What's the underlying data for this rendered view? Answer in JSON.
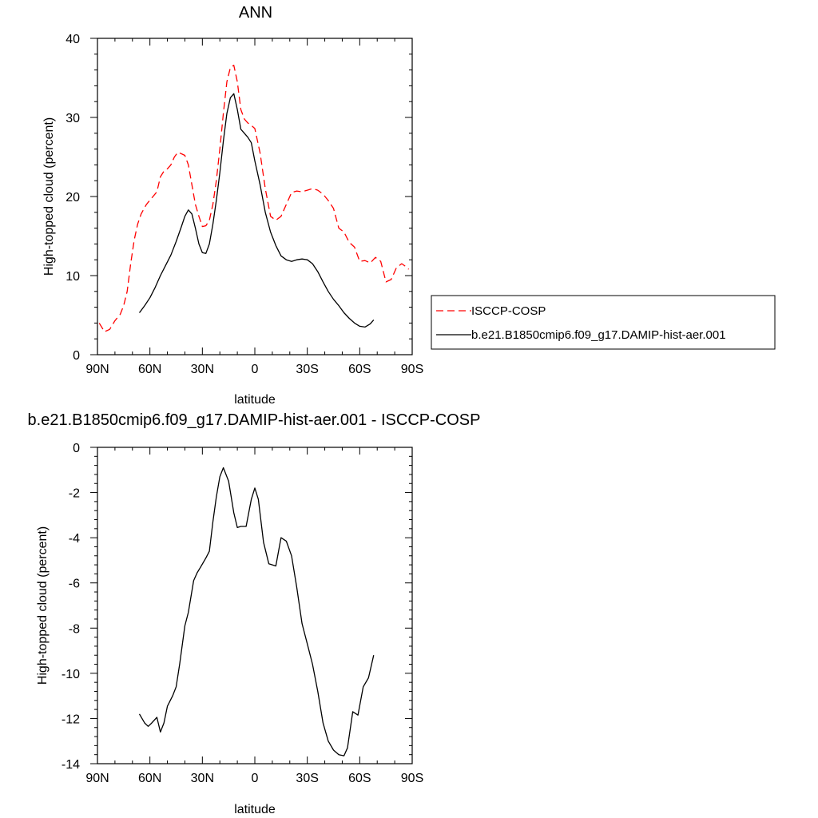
{
  "chart_data": [
    {
      "type": "line",
      "title": "ANN",
      "xlabel": "latitude",
      "ylabel": "High-topped cloud (percent)",
      "xlim": [
        90,
        -90
      ],
      "ylim": [
        0,
        40
      ],
      "xticks": [
        90,
        60,
        30,
        0,
        -30,
        -60,
        -90
      ],
      "xtick_labels": [
        "90N",
        "60N",
        "30N",
        "0",
        "30S",
        "60S",
        "90S"
      ],
      "yticks": [
        0,
        10,
        20,
        30,
        40
      ],
      "ytick_labels": [
        "0",
        "10",
        "20",
        "30",
        "40"
      ],
      "grid": false,
      "legend_position": "right",
      "series": [
        {
          "name": "ISCCP-COSP",
          "color": "#ff0000",
          "dash": "dashed",
          "x": [
            89,
            86,
            83,
            80,
            77,
            75,
            73,
            71,
            69,
            67,
            65,
            62,
            59,
            56,
            54,
            52,
            50,
            48,
            46,
            44,
            42,
            40,
            38,
            36,
            34,
            32,
            30,
            28,
            26,
            24,
            22,
            20,
            18,
            16,
            14,
            12,
            10,
            8,
            6,
            4,
            2,
            0,
            -3,
            -6,
            -9,
            -12,
            -15,
            -18,
            -21,
            -24,
            -27,
            -30,
            -33,
            -36,
            -39,
            -42,
            -45,
            -48,
            -51,
            -54,
            -57,
            -60,
            -63,
            -66,
            -69,
            -72,
            -75,
            -78,
            -81,
            -84,
            -86,
            -88
          ],
          "values": [
            4.0,
            2.9,
            3.2,
            4.3,
            5.1,
            6.2,
            8.0,
            11.5,
            14.5,
            16.5,
            17.8,
            19.0,
            19.8,
            20.6,
            22.5,
            23.2,
            23.5,
            24.0,
            25.0,
            25.6,
            25.4,
            25.2,
            24.0,
            21.5,
            19.0,
            17.5,
            16.2,
            16.3,
            17.0,
            19.0,
            22.0,
            26.0,
            30.5,
            34.5,
            36.3,
            36.6,
            34.5,
            31.0,
            29.8,
            29.3,
            29.0,
            28.6,
            25.5,
            21.0,
            17.5,
            17.0,
            17.5,
            19.0,
            20.5,
            20.7,
            20.6,
            20.8,
            21.0,
            20.8,
            20.3,
            19.5,
            18.5,
            16.0,
            15.5,
            14.2,
            13.6,
            11.8,
            11.9,
            11.6,
            12.3,
            11.8,
            9.2,
            9.5,
            11.0,
            11.5,
            11.2,
            10.8
          ]
        },
        {
          "name": "b.e21.B1850cmip6.f09_g17.DAMIP-hist-aer.001",
          "color": "#000000",
          "dash": "solid",
          "x": [
            66,
            63,
            60,
            57,
            54,
            51,
            48,
            45,
            42,
            40,
            38,
            36,
            34,
            32,
            30,
            28,
            26,
            24,
            22,
            20,
            18,
            16,
            14,
            12,
            10,
            8,
            6,
            4,
            2,
            0,
            -3,
            -6,
            -9,
            -12,
            -15,
            -18,
            -21,
            -24,
            -27,
            -30,
            -33,
            -36,
            -39,
            -42,
            -45,
            -48,
            -51,
            -54,
            -57,
            -60,
            -63,
            -66,
            -68
          ],
          "values": [
            5.3,
            6.2,
            7.2,
            8.5,
            10.0,
            11.3,
            12.6,
            14.3,
            16.2,
            17.5,
            18.3,
            17.8,
            16.0,
            14.0,
            12.9,
            12.8,
            14.0,
            16.5,
            19.5,
            23.0,
            27.0,
            30.5,
            32.5,
            33.0,
            31.0,
            28.5,
            28.0,
            27.5,
            26.8,
            24.5,
            21.5,
            18.0,
            15.5,
            13.8,
            12.5,
            12.0,
            11.8,
            12.0,
            12.1,
            12.0,
            11.5,
            10.5,
            9.2,
            8.0,
            7.0,
            6.2,
            5.3,
            4.6,
            4.0,
            3.6,
            3.5,
            3.9,
            4.4
          ]
        }
      ]
    },
    {
      "type": "line",
      "title": "b.e21.B1850cmip6.f09_g17.DAMIP-hist-aer.001 - ISCCP-COSP",
      "xlabel": "latitude",
      "ylabel": "High-topped cloud (percent)",
      "xlim": [
        90,
        -90
      ],
      "ylim": [
        -14,
        0
      ],
      "xticks": [
        90,
        60,
        30,
        0,
        -30,
        -60,
        -90
      ],
      "xtick_labels": [
        "90N",
        "60N",
        "30N",
        "0",
        "30S",
        "60S",
        "90S"
      ],
      "yticks": [
        0,
        -2,
        -4,
        -6,
        -8,
        -10,
        -12,
        -14
      ],
      "ytick_labels": [
        "0",
        "-2",
        "-4",
        "-6",
        "-8",
        "-10",
        "-12",
        "-14"
      ],
      "grid": false,
      "series": [
        {
          "color": "#000000",
          "dash": "solid",
          "x": [
            66,
            63,
            61,
            59,
            56,
            54,
            52,
            50,
            47,
            45,
            43,
            40,
            38,
            35,
            33,
            31,
            28,
            26,
            24,
            22,
            20,
            18,
            15,
            12,
            10,
            8,
            5,
            2,
            0,
            -2,
            -5,
            -8,
            -12,
            -15,
            -18,
            -21,
            -24,
            -27,
            -30,
            -33,
            -36,
            -39,
            -42,
            -45,
            -48,
            -51,
            -53,
            -56,
            -59,
            -62,
            -65,
            -68
          ],
          "values": [
            -11.8,
            -12.2,
            -12.35,
            -12.2,
            -11.95,
            -12.6,
            -12.2,
            -11.45,
            -11.0,
            -10.6,
            -9.6,
            -7.9,
            -7.3,
            -5.9,
            -5.55,
            -5.3,
            -4.9,
            -4.6,
            -3.3,
            -2.2,
            -1.3,
            -0.9,
            -1.5,
            -2.9,
            -3.55,
            -3.5,
            -3.5,
            -2.3,
            -1.8,
            -2.3,
            -4.2,
            -5.15,
            -5.25,
            -4.0,
            -4.15,
            -4.8,
            -6.2,
            -7.8,
            -8.7,
            -9.6,
            -10.8,
            -12.2,
            -13.0,
            -13.4,
            -13.6,
            -13.65,
            -13.3,
            -11.7,
            -11.85,
            -10.6,
            -10.2,
            -9.2
          ]
        }
      ]
    }
  ]
}
